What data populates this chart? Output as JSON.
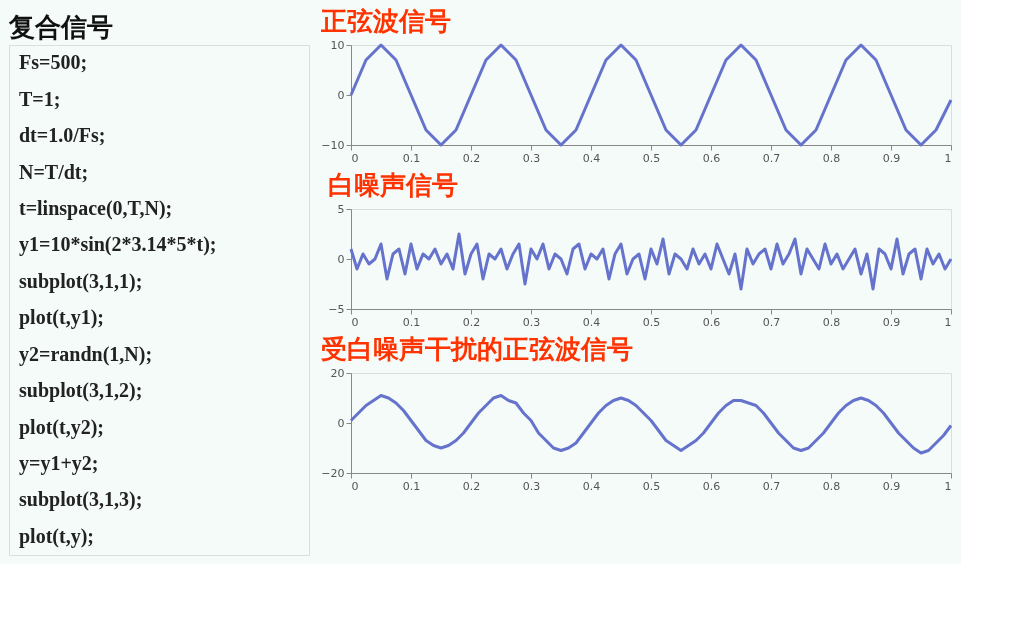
{
  "chart_data": [
    {
      "type": "other",
      "title": "复合信号",
      "annotations": [
        "Fs=500;",
        "T=1;",
        "dt=1.0/Fs;",
        "N=T/dt;",
        "t=linspace(0,T,N);",
        "y1=10*sin(2*3.14*5*t);",
        "subplot(3,1,1);",
        "plot(t,y1);",
        "y2=randn(1,N);",
        "subplot(3,1,2);",
        "plot(t,y2);",
        "y=y1+y2;",
        "subplot(3,1,3);",
        "plot(t,y);"
      ]
    },
    {
      "type": "line",
      "title": "正弦波信号",
      "x": [
        0,
        0.025,
        0.05,
        0.075,
        0.1,
        0.125,
        0.15,
        0.175,
        0.2,
        0.225,
        0.25,
        0.275,
        0.3,
        0.325,
        0.35,
        0.375,
        0.4,
        0.425,
        0.45,
        0.475,
        0.5,
        0.525,
        0.55,
        0.575,
        0.6,
        0.625,
        0.65,
        0.675,
        0.7,
        0.725,
        0.75,
        0.775,
        0.8,
        0.825,
        0.85,
        0.875,
        0.9,
        0.925,
        0.95,
        0.975,
        1
      ],
      "series": [
        {
          "color": "#6673cc",
          "values": [
            0,
            7,
            10,
            7,
            0,
            -7,
            -10,
            -7,
            0,
            7,
            10,
            7,
            0,
            -7,
            -10,
            -7,
            0,
            7,
            10,
            7,
            0,
            -7,
            -10,
            -7,
            0,
            7,
            10,
            7,
            0,
            -7,
            -10,
            -7,
            0,
            7,
            10,
            7,
            0,
            -7,
            -10,
            -7,
            -1
          ]
        }
      ],
      "xlim": [
        0,
        1
      ],
      "xticks": [
        0,
        0.1,
        0.2,
        0.3,
        0.4,
        0.5,
        0.6,
        0.7,
        0.8,
        0.9,
        1
      ],
      "ylim": [
        -10,
        10
      ],
      "yticks": [
        -10,
        0,
        10
      ],
      "grid": false
    },
    {
      "type": "line",
      "title": "白噪声信号",
      "x": [
        0,
        0.01,
        0.02,
        0.03,
        0.04,
        0.05,
        0.06,
        0.07,
        0.08,
        0.09,
        0.1,
        0.11,
        0.12,
        0.13,
        0.14,
        0.15,
        0.16,
        0.17,
        0.18,
        0.19,
        0.2,
        0.21,
        0.22,
        0.23,
        0.24,
        0.25,
        0.26,
        0.27,
        0.28,
        0.29,
        0.3,
        0.31,
        0.32,
        0.33,
        0.34,
        0.35,
        0.36,
        0.37,
        0.38,
        0.39,
        0.4,
        0.41,
        0.42,
        0.43,
        0.44,
        0.45,
        0.46,
        0.47,
        0.48,
        0.49,
        0.5,
        0.51,
        0.52,
        0.53,
        0.54,
        0.55,
        0.56,
        0.57,
        0.58,
        0.59,
        0.6,
        0.61,
        0.62,
        0.63,
        0.64,
        0.65,
        0.66,
        0.67,
        0.68,
        0.69,
        0.7,
        0.71,
        0.72,
        0.73,
        0.74,
        0.75,
        0.76,
        0.77,
        0.78,
        0.79,
        0.8,
        0.81,
        0.82,
        0.83,
        0.84,
        0.85,
        0.86,
        0.87,
        0.88,
        0.89,
        0.9,
        0.91,
        0.92,
        0.93,
        0.94,
        0.95,
        0.96,
        0.97,
        0.98,
        0.99,
        1
      ],
      "series": [
        {
          "color": "#6673cc",
          "values": [
            1,
            -1,
            0.5,
            -0.5,
            0,
            1.5,
            -2,
            0.5,
            1,
            -1.5,
            1.5,
            -1,
            0.5,
            0,
            1,
            -0.5,
            0.5,
            -1,
            2.5,
            -1.5,
            0.5,
            1.5,
            -2,
            0.5,
            0,
            1,
            -1,
            0.5,
            1.5,
            -2.5,
            1,
            0,
            1.5,
            -1,
            0.5,
            0,
            -1.5,
            1,
            1.5,
            -1,
            0.5,
            0,
            1,
            -2,
            0.5,
            1.5,
            -1.5,
            0,
            0.5,
            -2,
            1,
            -0.5,
            2,
            -1.5,
            0.5,
            0,
            -1,
            1,
            -0.5,
            0.5,
            -1,
            1.5,
            0,
            -1.5,
            0.5,
            -3,
            1,
            -0.5,
            0.5,
            1,
            -1,
            1.5,
            -0.5,
            0.5,
            2,
            -1.5,
            1,
            0,
            -1,
            1.5,
            -0.5,
            0.5,
            -1,
            0,
            1,
            -1.5,
            0.5,
            -3,
            1,
            0.5,
            -1,
            2,
            -1.5,
            0.5,
            1,
            -2,
            1,
            -0.5,
            0.5,
            -1,
            0
          ]
        }
      ],
      "xlim": [
        0,
        1
      ],
      "xticks": [
        0,
        0.1,
        0.2,
        0.3,
        0.4,
        0.5,
        0.6,
        0.7,
        0.8,
        0.9,
        1
      ],
      "ylim": [
        -5,
        5
      ],
      "yticks": [
        -5,
        0,
        5
      ],
      "grid": false
    },
    {
      "type": "line",
      "title": "受白噪声干扰的正弦波信号",
      "x": [
        0,
        0.0125,
        0.025,
        0.0375,
        0.05,
        0.0625,
        0.075,
        0.0875,
        0.1,
        0.1125,
        0.125,
        0.1375,
        0.15,
        0.1625,
        0.175,
        0.1875,
        0.2,
        0.2125,
        0.225,
        0.2375,
        0.25,
        0.2625,
        0.275,
        0.2875,
        0.3,
        0.3125,
        0.325,
        0.3375,
        0.35,
        0.3625,
        0.375,
        0.3875,
        0.4,
        0.4125,
        0.425,
        0.4375,
        0.45,
        0.4625,
        0.475,
        0.4875,
        0.5,
        0.5125,
        0.525,
        0.5375,
        0.55,
        0.5625,
        0.575,
        0.5875,
        0.6,
        0.6125,
        0.625,
        0.6375,
        0.65,
        0.6625,
        0.675,
        0.6875,
        0.7,
        0.7125,
        0.725,
        0.7375,
        0.75,
        0.7625,
        0.775,
        0.7875,
        0.8,
        0.8125,
        0.825,
        0.8375,
        0.85,
        0.8625,
        0.875,
        0.8875,
        0.9,
        0.9125,
        0.925,
        0.9375,
        0.95,
        0.9625,
        0.975,
        0.9875,
        1
      ],
      "series": [
        {
          "color": "#6673cc",
          "values": [
            1,
            4,
            7,
            9,
            11,
            10,
            8,
            5,
            1,
            -3,
            -7,
            -9,
            -10,
            -9,
            -7,
            -4,
            0,
            4,
            7,
            10,
            11,
            9,
            8,
            4,
            1,
            -4,
            -7,
            -10,
            -11,
            -10,
            -8,
            -4,
            0,
            4,
            7,
            9,
            10,
            9,
            7,
            4,
            1,
            -3,
            -7,
            -9,
            -11,
            -9,
            -7,
            -4,
            0,
            4,
            7,
            9,
            9,
            8,
            7,
            4,
            0,
            -4,
            -7,
            -10,
            -11,
            -10,
            -7,
            -4,
            0,
            4,
            7,
            9,
            10,
            9,
            7,
            4,
            0,
            -4,
            -7,
            -10,
            -12,
            -11,
            -8,
            -5,
            -1
          ]
        }
      ],
      "xlim": [
        0,
        1
      ],
      "xticks": [
        0,
        0.1,
        0.2,
        0.3,
        0.4,
        0.5,
        0.6,
        0.7,
        0.8,
        0.9,
        1
      ],
      "ylim": [
        -20,
        20
      ],
      "yticks": [
        -20,
        0,
        20
      ],
      "grid": false
    }
  ]
}
